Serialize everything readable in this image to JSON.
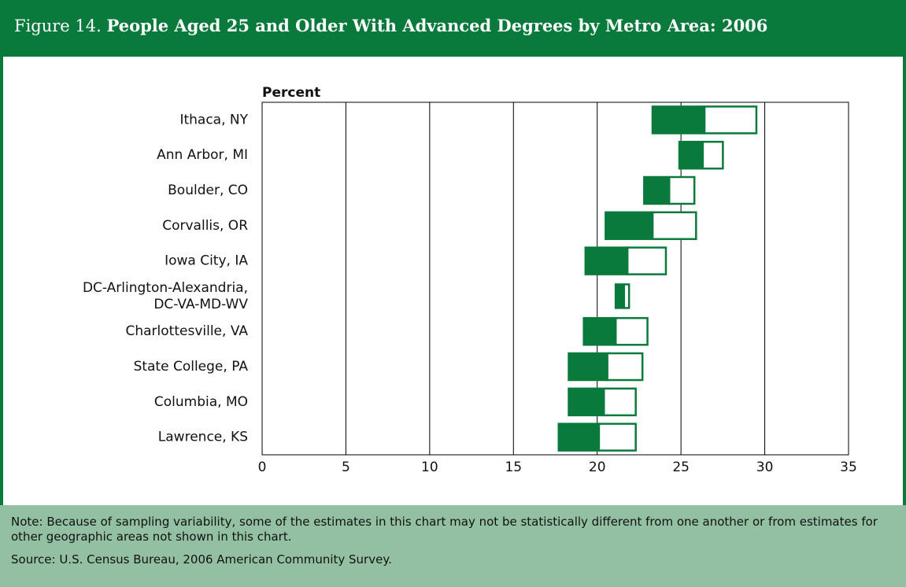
{
  "chart_data": {
    "type": "range-bar",
    "figure_label": "Figure 14.",
    "title": "People Aged 25 and Older With Advanced Degrees by Metro Area: 2006",
    "axis_label": "Percent",
    "categories": [
      "Ithaca, NY",
      "Ann Arbor, MI",
      "Boulder, CO",
      "Corvallis, OR",
      "Iowa City, IA",
      "DC-Arlington-Alexandria,\nDC-VA-MD-WV",
      "Charlottesville, VA",
      "State College, PA",
      "Columbia, MO",
      "Lawrence, KS"
    ],
    "lower": [
      23.3,
      24.9,
      22.8,
      20.5,
      19.3,
      21.1,
      19.2,
      18.3,
      18.3,
      17.7
    ],
    "values": [
      26.4,
      26.3,
      24.3,
      23.3,
      21.8,
      21.6,
      21.1,
      20.6,
      20.4,
      20.1
    ],
    "upper": [
      29.5,
      27.5,
      25.8,
      25.9,
      24.1,
      21.9,
      23.0,
      22.7,
      22.3,
      22.3
    ],
    "color": "#0a7a3c",
    "xlim": [
      0,
      35
    ],
    "xticks": [
      0,
      5,
      10,
      15,
      20,
      25,
      30,
      35
    ],
    "grid": true,
    "note": "Note: Because of sampling variability, some of the estimates in this chart may not be statistically different from one another or from estimates for other geographic areas not shown in this chart.",
    "source": "Source: U.S. Census Bureau, 2006 American Community Survey."
  }
}
